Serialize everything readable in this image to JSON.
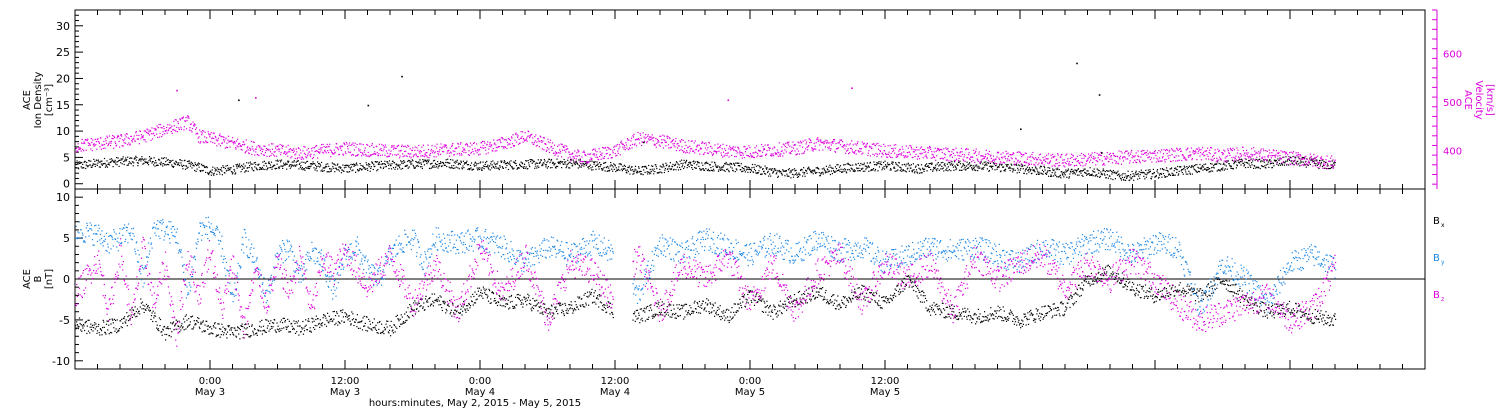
{
  "chart_data": [
    {
      "type": "scatter",
      "panel": "top",
      "ylabel_lines": [
        "ACE",
        "Ion Density",
        "[cm⁻³]"
      ],
      "ylim": [
        -1,
        33
      ],
      "yticks": [
        0,
        5,
        10,
        15,
        20,
        25,
        30
      ],
      "y2label_lines": [
        "ACE",
        "Velocity",
        "[km/s]"
      ],
      "y2lim": [
        320,
        690
      ],
      "y2ticks": [
        400,
        500,
        600
      ],
      "series": [
        {
          "axis": "left",
          "color": "#000000",
          "x": [
            0.0,
            3.0,
            6.0,
            9.0,
            11.0,
            12.0,
            14.0,
            16.0,
            18.0,
            21.0,
            24.0,
            27.0,
            30.0,
            33.0,
            36.0,
            40.0,
            44.0,
            48.0,
            50.0,
            52.0,
            54.0,
            56.0,
            60.0,
            63.0,
            66.0,
            69.0,
            72.0,
            75.0,
            78.0,
            80.0,
            84.0,
            88.0,
            90.0,
            93.0,
            96.0,
            100.0,
            104.0,
            106.0,
            108.0,
            110.0,
            112.0
          ],
          "y": [
            3.5,
            4.2,
            4.5,
            4.0,
            3.2,
            2.5,
            2.8,
            3.5,
            3.8,
            3.5,
            3.0,
            3.5,
            3.8,
            4.0,
            3.5,
            3.8,
            4.0,
            3.2,
            2.5,
            3.0,
            3.8,
            3.5,
            3.0,
            2.0,
            2.5,
            3.2,
            3.5,
            3.0,
            3.5,
            3.5,
            3.0,
            2.0,
            2.5,
            1.5,
            2.0,
            3.0,
            4.0,
            3.8,
            4.5,
            4.0,
            3.5
          ]
        },
        {
          "axis": "right",
          "color": "#dd00dd",
          "x": [
            0.0,
            2.0,
            4.0,
            6.0,
            8.0,
            10.0,
            11.0,
            12.0,
            14.0,
            16.0,
            18.0,
            20.0,
            22.0,
            24.0,
            27.0,
            30.0,
            33.0,
            36.0,
            38.0,
            40.0,
            42.0,
            45.0,
            48.0,
            50.0,
            52.0,
            54.0,
            56.0,
            58.0,
            60.0,
            62.0,
            64.0,
            66.0,
            68.0,
            72.0,
            76.0,
            80.0,
            84.0,
            88.0,
            92.0,
            96.0,
            100.0,
            102.0,
            104.0,
            106.0,
            108.0,
            110.0,
            112.0
          ],
          "y": [
            410,
            415,
            420,
            430,
            445,
            460,
            430,
            425,
            415,
            405,
            400,
            395,
            400,
            405,
            400,
            398,
            402,
            405,
            415,
            430,
            410,
            385,
            400,
            425,
            420,
            410,
            405,
            400,
            398,
            402,
            405,
            415,
            410,
            400,
            395,
            390,
            385,
            380,
            385,
            390,
            395,
            390,
            395,
            390,
            385,
            380,
            375
          ]
        },
        {
          "axis": "left",
          "color": "#000000",
          "x": [
            14.5,
            26.0,
            29.0,
            50.5,
            84.0,
            89.0,
            91.0,
            91.2
          ],
          "y": [
            16.0,
            15.0,
            20.5,
            8.0,
            10.5,
            23.0,
            17.0,
            6.0
          ]
        },
        {
          "axis": "right",
          "color": "#dd00dd",
          "x": [
            9.0,
            16.0,
            58.0,
            69.0
          ],
          "y": [
            525,
            510,
            505,
            530
          ]
        }
      ]
    },
    {
      "type": "scatter",
      "panel": "bottom",
      "ylabel_lines": [
        "ACE",
        "B",
        "[nT]"
      ],
      "ylim": [
        -11,
        11
      ],
      "yticks": [
        -10,
        -5,
        0,
        5,
        10
      ],
      "zero_line": true,
      "legend": [
        {
          "label": "B",
          "sub": "x",
          "color": "#000000"
        },
        {
          "label": "B",
          "sub": "y",
          "color": "#1e88e5"
        },
        {
          "label": "B",
          "sub": "z",
          "color": "#dd00dd"
        }
      ],
      "series": [
        {
          "color": "#000000",
          "x": [
            0.0,
            2.0,
            4.0,
            6.0,
            8.0,
            10.0,
            12.0,
            14.0,
            16.0,
            18.0,
            20.0,
            22.0,
            24.0,
            26.0,
            28.0,
            30.0,
            32.0,
            34.0,
            36.0,
            38.0,
            40.0,
            42.0,
            44.0,
            46.0,
            48.0,
            50.0,
            52.0,
            54.0,
            56.0,
            58.0,
            60.0,
            62.0,
            64.0,
            66.0,
            68.0,
            70.0,
            72.0,
            74.0,
            76.0,
            78.0,
            80.0,
            82.0,
            84.0,
            86.0,
            88.0,
            90.0,
            92.0,
            94.0,
            96.0,
            98.0,
            100.0,
            102.0,
            104.0,
            106.0,
            108.0,
            110.0,
            112.0
          ],
          "y": [
            -5.5,
            -6.0,
            -5.5,
            -3.0,
            -6.5,
            -5.0,
            -6.0,
            -6.5,
            -6.0,
            -5.5,
            -6.0,
            -5.0,
            -4.5,
            -5.5,
            -6.0,
            -3.5,
            -2.5,
            -4.0,
            -1.5,
            -3.0,
            -2.5,
            -4.0,
            -3.5,
            -2.0,
            -4.0,
            -4.5,
            -3.5,
            -4.0,
            -3.0,
            -4.5,
            -2.0,
            -4.0,
            -2.5,
            -1.5,
            -3.0,
            -1.5,
            -3.0,
            0.0,
            -3.5,
            -4.0,
            -4.5,
            -4.0,
            -5.0,
            -4.0,
            -3.5,
            0.0,
            1.0,
            -1.0,
            -2.0,
            -1.0,
            -2.0,
            0.0,
            -2.5,
            -4.0,
            -3.5,
            -4.5,
            -5.0
          ]
        },
        {
          "color": "#1e88e5",
          "x": [
            0.0,
            2.0,
            3.0,
            4.0,
            5.0,
            6.0,
            7.0,
            8.0,
            9.0,
            10.0,
            11.0,
            12.0,
            13.0,
            14.0,
            15.0,
            16.0,
            17.0,
            18.0,
            19.0,
            20.0,
            21.0,
            22.0,
            23.0,
            24.0,
            25.0,
            26.0,
            27.0,
            28.0,
            29.0,
            30.0,
            31.0,
            32.0,
            34.0,
            36.0,
            38.0,
            40.0,
            42.0,
            44.0,
            46.0,
            48.0,
            50.0,
            52.0,
            54.0,
            56.0,
            58.0,
            60.0,
            62.0,
            64.0,
            66.0,
            68.0,
            70.0,
            72.0,
            74.0,
            76.0,
            78.0,
            80.0,
            82.0,
            84.0,
            86.0,
            88.0,
            90.0,
            92.0,
            94.0,
            96.0,
            98.0,
            100.0,
            102.0,
            104.0,
            106.0,
            108.0,
            110.0,
            112.0
          ],
          "y": [
            6.0,
            5.5,
            4.5,
            5.0,
            6.0,
            0.0,
            6.5,
            6.0,
            5.5,
            -2.0,
            6.0,
            6.5,
            4.0,
            -3.0,
            5.0,
            2.0,
            -2.0,
            3.0,
            4.0,
            0.0,
            3.5,
            2.0,
            -1.5,
            3.0,
            4.0,
            1.0,
            0.0,
            3.0,
            4.5,
            5.0,
            2.0,
            5.0,
            4.5,
            5.0,
            4.0,
            2.0,
            4.0,
            3.0,
            4.5,
            3.0,
            -2.0,
            4.5,
            3.0,
            5.0,
            4.0,
            3.0,
            4.5,
            3.0,
            5.0,
            3.5,
            4.0,
            2.0,
            3.0,
            4.0,
            3.5,
            4.0,
            3.0,
            2.0,
            4.0,
            3.0,
            4.5,
            5.0,
            3.0,
            4.5,
            4.0,
            -3.5,
            2.0,
            0.0,
            -3.0,
            2.0,
            3.0,
            1.5
          ]
        },
        {
          "color": "#dd00dd",
          "x": [
            0.0,
            2.0,
            3.0,
            4.0,
            5.0,
            6.0,
            7.0,
            8.0,
            9.0,
            10.0,
            11.0,
            12.0,
            13.0,
            14.0,
            15.0,
            16.0,
            17.0,
            18.0,
            19.0,
            20.0,
            21.0,
            22.0,
            23.0,
            24.0,
            26.0,
            28.0,
            30.0,
            32.0,
            34.0,
            36.0,
            38.0,
            40.0,
            42.0,
            44.0,
            46.0,
            48.0,
            50.0,
            52.0,
            54.0,
            56.0,
            58.0,
            60.0,
            62.0,
            64.0,
            66.0,
            68.0,
            70.0,
            72.0,
            74.0,
            76.0,
            78.0,
            80.0,
            82.0,
            84.0,
            86.0,
            88.0,
            90.0,
            92.0,
            94.0,
            96.0,
            98.0,
            100.0,
            102.0,
            104.0,
            106.0,
            108.0,
            110.0,
            112.0
          ],
          "y": [
            -2.0,
            2.5,
            -4.0,
            3.5,
            -5.0,
            4.0,
            -3.0,
            2.0,
            -7.0,
            3.0,
            -2.0,
            4.0,
            -4.0,
            2.0,
            -6.0,
            1.0,
            -3.0,
            2.0,
            -1.5,
            3.0,
            -4.0,
            2.5,
            1.0,
            3.5,
            -1.0,
            3.0,
            -3.0,
            2.0,
            -4.0,
            4.0,
            -2.0,
            3.0,
            -5.0,
            2.0,
            1.0,
            -3.0,
            3.0,
            -4.0,
            2.0,
            0.0,
            3.0,
            -3.0,
            2.0,
            -4.0,
            1.0,
            3.0,
            -3.0,
            2.0,
            0.0,
            2.0,
            -4.0,
            3.0,
            0.0,
            2.0,
            3.0,
            -1.0,
            2.0,
            0.0,
            2.5,
            0.0,
            -3.0,
            -5.0,
            -4.0,
            -3.0,
            -2.0,
            -5.0,
            -3.5,
            1.5
          ]
        }
      ]
    }
  ],
  "x_axis": {
    "xlim": [
      0,
      120
    ],
    "ticks": [
      {
        "x": 12,
        "line1": "0:00",
        "line2": "May 3"
      },
      {
        "x": 24,
        "line1": "12:00",
        "line2": "May 3"
      },
      {
        "x": 36,
        "line1": "0:00",
        "line2": "May 4"
      },
      {
        "x": 48,
        "line1": "12:00",
        "line2": "May 4"
      },
      {
        "x": 60,
        "line1": "0:00",
        "line2": "May 5"
      },
      {
        "x": 72,
        "line1": "12:00",
        "line2": "May 5"
      }
    ],
    "title": "hours:minutes, May  2, 2015 - May  5, 2015"
  }
}
